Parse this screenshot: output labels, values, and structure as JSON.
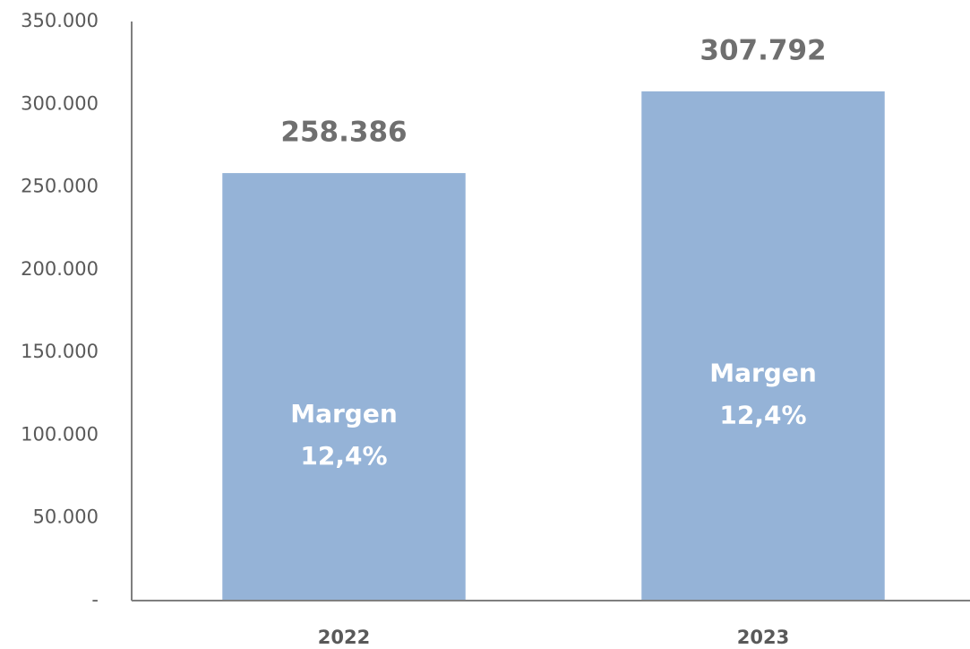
{
  "chart_data": {
    "type": "bar",
    "categories": [
      "2022",
      "2023"
    ],
    "values": [
      258386,
      307792
    ],
    "value_labels": [
      "258.386",
      "307.792"
    ],
    "annotations": [
      [
        "Margen",
        "12,4%"
      ],
      [
        "Margen",
        "12,4%"
      ]
    ],
    "color": "#95b3d7",
    "ylim": [
      0,
      350000
    ],
    "yticks": [
      {
        "value": 0,
        "label": "-"
      },
      {
        "value": 50000,
        "label": "50.000"
      },
      {
        "value": 100000,
        "label": "100.000"
      },
      {
        "value": 150000,
        "label": "150.000"
      },
      {
        "value": 200000,
        "label": "200.000"
      },
      {
        "value": 250000,
        "label": "250.000"
      },
      {
        "value": 300000,
        "label": "300.000"
      },
      {
        "value": 350000,
        "label": "350.000"
      }
    ],
    "grid": false
  }
}
